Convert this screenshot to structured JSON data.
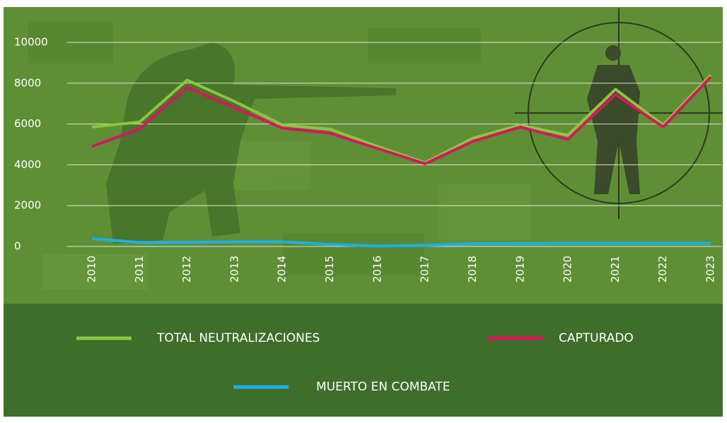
{
  "chart_data": {
    "type": "line",
    "categories": [
      "2010",
      "2011",
      "2012",
      "2013",
      "2014",
      "2015",
      "2016",
      "2017",
      "2018",
      "2019",
      "2020",
      "2021",
      "2022",
      "2023"
    ],
    "series": [
      {
        "name": "TOTAL NEUTRALIZACIONES",
        "color": "#8dc63f",
        "values": [
          5850,
          6100,
          8150,
          7100,
          5950,
          5750,
          4900,
          4100,
          5300,
          5950,
          5450,
          7700,
          5950,
          8400
        ]
      },
      {
        "name": "CAPTURADO",
        "color": "#d6175f",
        "values": [
          4900,
          5750,
          7800,
          6800,
          5800,
          5550,
          4800,
          4050,
          5150,
          5850,
          5250,
          7450,
          5850,
          8300
        ]
      },
      {
        "name": "MUERTO EN COMBATE",
        "color": "#1ab0e8",
        "values": [
          380,
          200,
          200,
          220,
          230,
          100,
          20,
          50,
          130,
          140,
          150,
          150,
          150,
          150
        ]
      }
    ],
    "ylim": [
      0,
      10000
    ],
    "yticks": [
      0,
      2000,
      4000,
      6000,
      8000,
      10000
    ],
    "grid": true
  }
}
